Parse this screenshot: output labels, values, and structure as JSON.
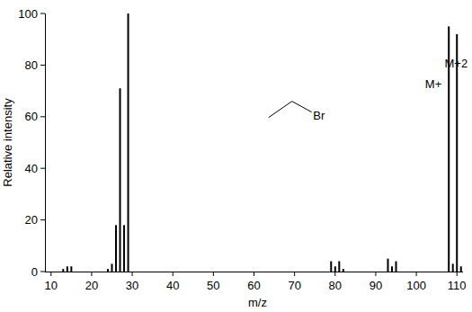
{
  "chart_data": {
    "type": "bar",
    "x_label": "m/z",
    "y_label": "Relative intensity",
    "x": [
      13,
      14,
      15,
      24,
      25,
      26,
      27,
      28,
      29,
      79,
      80,
      81,
      82,
      93,
      94,
      95,
      108,
      109,
      110,
      111
    ],
    "values": [
      1,
      2,
      2,
      1,
      3,
      18,
      71,
      18,
      100,
      4,
      2,
      4,
      1,
      5,
      2,
      4,
      95,
      3,
      92,
      2
    ],
    "color": "#000000",
    "xlim": [
      8.5,
      111.5
    ],
    "ylim": [
      0,
      100
    ],
    "xticks": [
      10,
      20,
      30,
      40,
      50,
      60,
      70,
      80,
      90,
      100,
      110
    ],
    "yticks": [
      0,
      20,
      40,
      60,
      80,
      100
    ],
    "grid": false,
    "annotations": [
      {
        "text": "M+",
        "x": 104.2,
        "y": 71
      },
      {
        "text": "M+2",
        "x": 109.8,
        "y": 79
      },
      {
        "text": "Br",
        "x": 76,
        "y": 59
      }
    ]
  }
}
